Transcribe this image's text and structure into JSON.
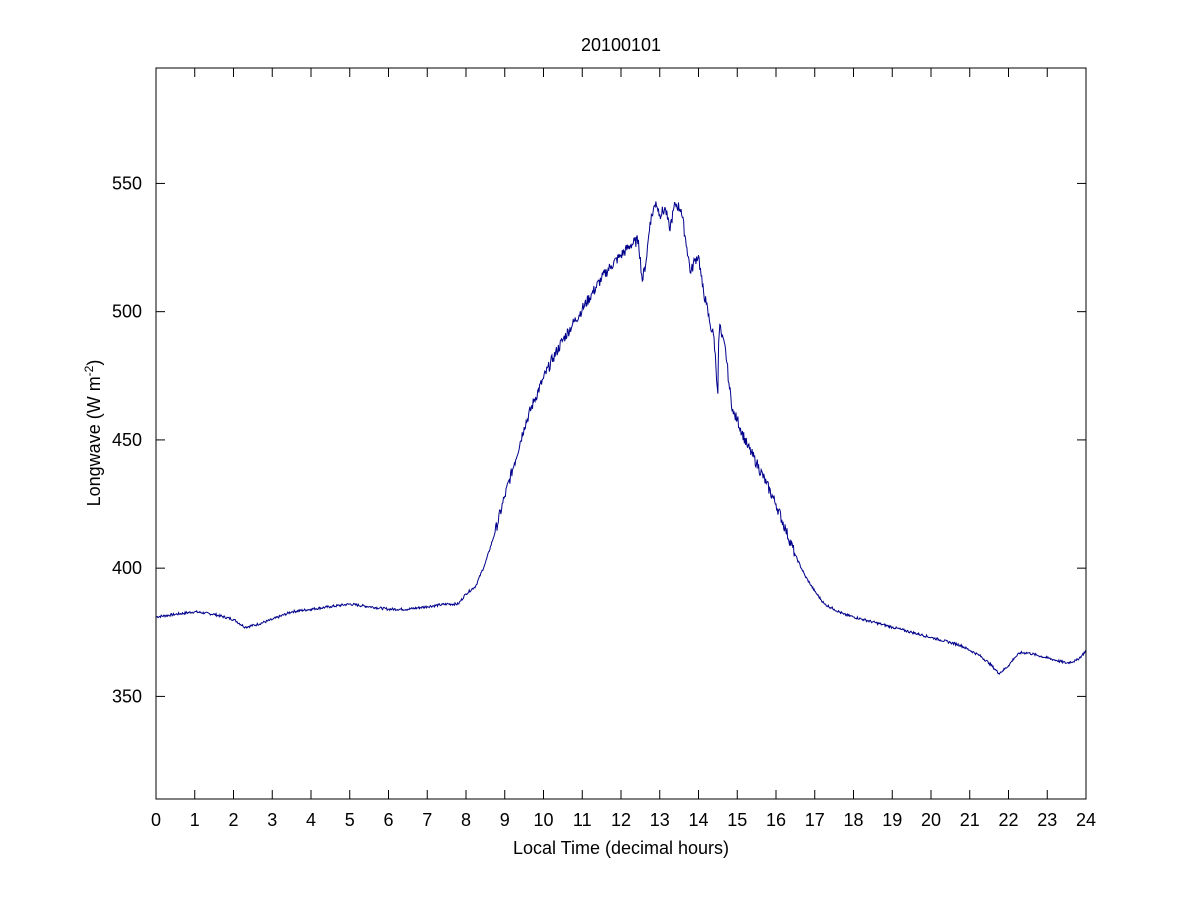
{
  "chart_data": {
    "type": "line",
    "title": "20100101",
    "xlabel": "Local Time (decimal hours)",
    "ylabel_main": "Longwave (W m",
    "ylabel_sup": "-2",
    "ylabel_close": ")",
    "xlim": [
      0,
      24
    ],
    "ylim": [
      310,
      595
    ],
    "xticks": [
      0,
      1,
      2,
      3,
      4,
      5,
      6,
      7,
      8,
      9,
      10,
      11,
      12,
      13,
      14,
      15,
      16,
      17,
      18,
      19,
      20,
      21,
      22,
      23,
      24
    ],
    "yticks": [
      350,
      400,
      450,
      500,
      550
    ],
    "grid": false,
    "legend": "none",
    "line_color": "#00008b",
    "series": [
      {
        "x": [
          0,
          0.5,
          1,
          1.5,
          2,
          2.1,
          2.3,
          2.6,
          3,
          3.5,
          4,
          4.5,
          5,
          5.5,
          6,
          6.5,
          7,
          7.5,
          7.8,
          8,
          8.25,
          8.5,
          8.75,
          9,
          9.25,
          9.5,
          9.75,
          10,
          10.25,
          10.5,
          10.75,
          11,
          11.25,
          11.5,
          11.75,
          12,
          12.25,
          12.45,
          12.55,
          12.65,
          12.75,
          12.9,
          13,
          13.15,
          13.25,
          13.4,
          13.55,
          13.7,
          13.8,
          13.9,
          14,
          14.1,
          14.2,
          14.3,
          14.4,
          14.5,
          14.52,
          14.55,
          14.6,
          14.7,
          14.8,
          14.9,
          15,
          15.25,
          15.5,
          15.75,
          16,
          16.25,
          16.5,
          16.75,
          17,
          17.25,
          17.5,
          17.75,
          18,
          18.25,
          18.5,
          18.75,
          19,
          19.25,
          19.5,
          19.75,
          20,
          20.25,
          20.5,
          20.75,
          21,
          21.25,
          21.5,
          21.75,
          21.85,
          22,
          22.15,
          22.3,
          22.5,
          22.75,
          23,
          23.25,
          23.5,
          23.75,
          23.9,
          24
        ],
        "y": [
          381,
          382,
          383,
          382,
          380,
          379,
          377,
          378,
          380,
          383,
          384,
          385,
          386,
          385,
          384,
          384,
          385,
          386,
          386,
          390,
          393,
          402,
          414,
          428,
          441,
          455,
          465,
          474,
          482,
          489,
          495,
          501,
          507,
          513,
          518,
          522,
          526,
          528,
          512,
          520,
          535,
          543,
          538,
          540,
          532,
          542,
          540,
          525,
          515,
          520,
          522,
          510,
          503,
          495,
          490,
          468,
          488,
          495,
          490,
          485,
          470,
          460,
          458,
          448,
          441,
          433,
          425,
          415,
          405,
          397,
          391,
          386,
          384,
          382,
          381,
          380,
          379,
          378,
          377,
          376,
          375,
          374,
          373,
          372,
          371,
          370,
          368,
          366,
          363,
          359,
          360,
          362,
          365,
          367,
          367,
          366,
          365,
          364,
          363,
          364,
          366,
          368
        ]
      }
    ]
  }
}
